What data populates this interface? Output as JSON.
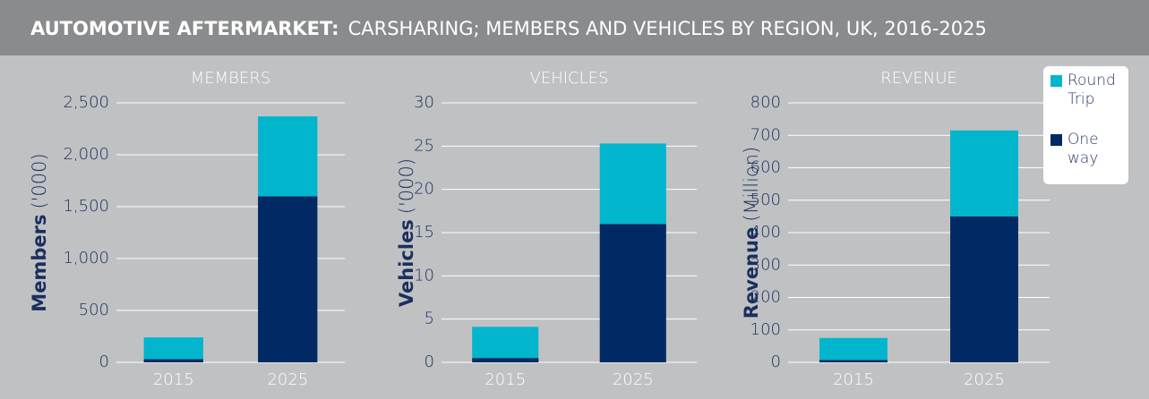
{
  "header": {
    "title": "AUTOMOTIVE AFTERMARKET:",
    "subtitle": "CARSHARING; MEMBERS AND VEHICLES BY REGION, UK, 2016-2025"
  },
  "chart_data": [
    {
      "type": "bar",
      "stacked": true,
      "title": "MEMBERS",
      "ylabel": "Members",
      "ylabel_unit": "('000)",
      "categories": [
        "2015",
        "2025"
      ],
      "series": [
        {
          "name": "One way",
          "color": "#012a64",
          "values": [
            30,
            1600
          ]
        },
        {
          "name": "Round Trip",
          "color": "#00b5cc",
          "values": [
            210,
            770
          ]
        }
      ],
      "ylim": [
        0,
        2500
      ],
      "yticks": [
        0,
        500,
        {
          "value": 1000,
          "label": "1,000"
        },
        {
          "value": 1500,
          "label": "1,500"
        },
        {
          "value": 2000,
          "label": "2,000"
        },
        {
          "value": 2500,
          "label": "2,500"
        }
      ],
      "grid": true
    },
    {
      "type": "bar",
      "stacked": true,
      "title": "VEHICLES",
      "ylabel": "Vehicles",
      "ylabel_unit": "('000)",
      "categories": [
        "2015",
        "2025"
      ],
      "series": [
        {
          "name": "One way",
          "color": "#012a64",
          "values": [
            0.5,
            16
          ]
        },
        {
          "name": "Round Trip",
          "color": "#00b5cc",
          "values": [
            3.6,
            9.3
          ]
        }
      ],
      "ylim": [
        0,
        30
      ],
      "yticks": [
        0,
        5,
        10,
        15,
        20,
        25,
        30
      ],
      "grid": true
    },
    {
      "type": "bar",
      "stacked": true,
      "title": "REVENUE",
      "ylabel": "Revenue",
      "ylabel_unit": "(Million)",
      "categories": [
        "2015",
        "2025"
      ],
      "series": [
        {
          "name": "One way",
          "color": "#012a64",
          "values": [
            7,
            450
          ]
        },
        {
          "name": "Round Trip",
          "color": "#00b5cc",
          "values": [
            68,
            265
          ]
        }
      ],
      "ylim": [
        0,
        800
      ],
      "yticks": [
        0,
        100,
        200,
        300,
        400,
        500,
        600,
        700,
        800
      ],
      "grid": true,
      "legend": "top-right"
    }
  ]
}
